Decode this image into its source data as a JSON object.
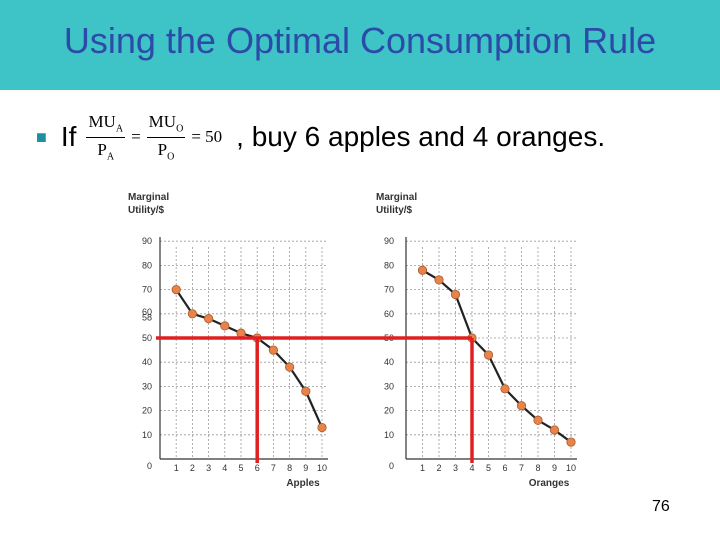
{
  "slide": {
    "title": "Using the Optimal Consumption Rule",
    "bullet_prefix": "If",
    "formula": {
      "num_a": "MU",
      "sub_a": "A",
      "den_a": "P",
      "num_o": "MU",
      "sub_o": "O",
      "den_o": "P",
      "equals": "=",
      "result": "= 50"
    },
    "bullet_text": ", buy 6 apples and 4 oranges.",
    "page_number": "76"
  },
  "colors": {
    "title_bar": "#3ec3c6",
    "title_text": "#2c4aa8",
    "bullet": "#1c8fa3",
    "point_fill": "#e8844a",
    "curve": "#222222",
    "highlight": "#e02020"
  },
  "chart_data": [
    {
      "type": "line",
      "ylabel": "Marginal Utility/$",
      "xlabel": "Apples",
      "x": [
        1,
        2,
        3,
        4,
        5,
        6,
        7,
        8,
        9,
        10
      ],
      "series": [
        {
          "values": [
            70,
            60,
            58,
            55,
            52,
            50,
            45,
            38,
            28,
            13
          ]
        }
      ],
      "xlim": [
        0,
        10
      ],
      "ylim": [
        0,
        100
      ],
      "yticks": [
        "10",
        "20",
        "30",
        "40",
        "50",
        "58",
        "60",
        "70",
        "80",
        "90"
      ],
      "ytick_values": [
        10,
        20,
        30,
        40,
        50,
        58,
        60,
        70,
        80,
        90
      ],
      "xticks": [
        "1",
        "2",
        "3",
        "4",
        "5",
        "6",
        "7",
        "8",
        "9",
        "10"
      ],
      "zero_label": "0",
      "highlight": {
        "x": 6,
        "y": 50
      },
      "grid": true
    },
    {
      "type": "line",
      "ylabel": "Marginal Utility/$",
      "xlabel": "Oranges",
      "x": [
        1,
        2,
        3,
        4,
        5,
        6,
        7,
        8,
        9,
        10
      ],
      "series": [
        {
          "values": [
            78,
            74,
            68,
            50,
            43,
            29,
            22,
            16,
            12,
            7
          ]
        }
      ],
      "xlim": [
        0,
        10
      ],
      "ylim": [
        0,
        100
      ],
      "yticks": [
        "10",
        "20",
        "30",
        "40",
        "50",
        "60",
        "70",
        "80",
        "90"
      ],
      "ytick_values": [
        10,
        20,
        30,
        40,
        50,
        60,
        70,
        80,
        90
      ],
      "xticks": [
        "1",
        "2",
        "3",
        "4",
        "5",
        "6",
        "7",
        "8",
        "9",
        "10"
      ],
      "zero_label": "0",
      "highlight": {
        "x": 4,
        "y": 50
      },
      "grid": true
    }
  ]
}
